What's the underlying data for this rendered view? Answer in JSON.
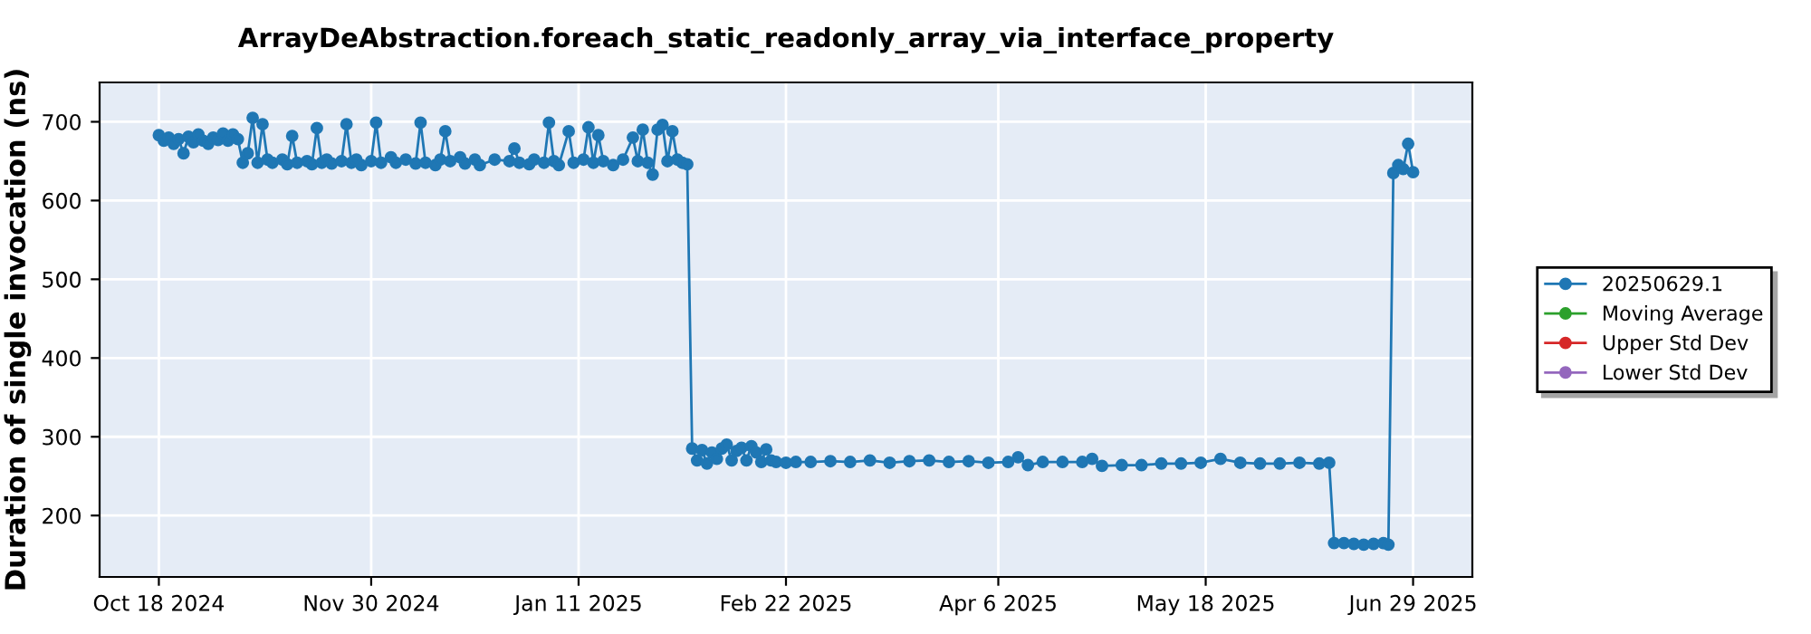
{
  "chart_data": {
    "type": "line",
    "title": "ArrayDeAbstraction.foreach_static_readonly_array_via_interface_property",
    "ylabel": "Duration of single invocation (ns)",
    "xlim": [
      "2024-10-06",
      "2025-07-11"
    ],
    "ylim": [
      122,
      750
    ],
    "xticks": [
      {
        "value": "2024-10-18",
        "label": "Oct 18 2024"
      },
      {
        "value": "2024-11-30",
        "label": "Nov 30 2024"
      },
      {
        "value": "2025-01-11",
        "label": "Jan 11 2025"
      },
      {
        "value": "2025-02-22",
        "label": "Feb 22 2025"
      },
      {
        "value": "2025-04-06",
        "label": "Apr 6 2025"
      },
      {
        "value": "2025-05-18",
        "label": "May 18 2025"
      },
      {
        "value": "2025-06-29",
        "label": "Jun 29 2025"
      }
    ],
    "yticks": [
      200,
      300,
      400,
      500,
      600,
      700
    ],
    "grid": true,
    "legend": "right",
    "marker": "circle",
    "line_style": "solid",
    "series": [
      {
        "name": "20250629.1",
        "color": "#1f77b4",
        "x": [
          "2024-10-18",
          "2024-10-19",
          "2024-10-20",
          "2024-10-21",
          "2024-10-22",
          "2024-10-23",
          "2024-10-24",
          "2024-10-25",
          "2024-10-26",
          "2024-10-27",
          "2024-10-28",
          "2024-10-29",
          "2024-10-30",
          "2024-10-31",
          "2024-11-01",
          "2024-11-02",
          "2024-11-03",
          "2024-11-04",
          "2024-11-05",
          "2024-11-06",
          "2024-11-07",
          "2024-11-08",
          "2024-11-09",
          "2024-11-10",
          "2024-11-12",
          "2024-11-13",
          "2024-11-14",
          "2024-11-15",
          "2024-11-17",
          "2024-11-18",
          "2024-11-19",
          "2024-11-20",
          "2024-11-21",
          "2024-11-22",
          "2024-11-24",
          "2024-11-25",
          "2024-11-26",
          "2024-11-27",
          "2024-11-28",
          "2024-11-30",
          "2024-12-01",
          "2024-12-02",
          "2024-12-04",
          "2024-12-05",
          "2024-12-07",
          "2024-12-09",
          "2024-12-10",
          "2024-12-11",
          "2024-12-13",
          "2024-12-14",
          "2024-12-15",
          "2024-12-16",
          "2024-12-18",
          "2024-12-19",
          "2024-12-21",
          "2024-12-22",
          "2024-12-25",
          "2024-12-28",
          "2024-12-29",
          "2024-12-30",
          "2025-01-01",
          "2025-01-02",
          "2025-01-04",
          "2025-01-05",
          "2025-01-06",
          "2025-01-07",
          "2025-01-09",
          "2025-01-10",
          "2025-01-12",
          "2025-01-13",
          "2025-01-14",
          "2025-01-15",
          "2025-01-16",
          "2025-01-18",
          "2025-01-20",
          "2025-01-22",
          "2025-01-23",
          "2025-01-24",
          "2025-01-25",
          "2025-01-26",
          "2025-01-27",
          "2025-01-28",
          "2025-01-29",
          "2025-01-30",
          "2025-01-31",
          "2025-02-01",
          "2025-02-02",
          "2025-02-03",
          "2025-02-04",
          "2025-02-05",
          "2025-02-06",
          "2025-02-07",
          "2025-02-08",
          "2025-02-09",
          "2025-02-10",
          "2025-02-11",
          "2025-02-12",
          "2025-02-13",
          "2025-02-14",
          "2025-02-15",
          "2025-02-16",
          "2025-02-17",
          "2025-02-18",
          "2025-02-19",
          "2025-02-20",
          "2025-02-22",
          "2025-02-24",
          "2025-02-27",
          "2025-03-03",
          "2025-03-07",
          "2025-03-11",
          "2025-03-15",
          "2025-03-19",
          "2025-03-23",
          "2025-03-27",
          "2025-03-31",
          "2025-04-04",
          "2025-04-08",
          "2025-04-10",
          "2025-04-12",
          "2025-04-15",
          "2025-04-19",
          "2025-04-23",
          "2025-04-25",
          "2025-04-27",
          "2025-05-01",
          "2025-05-05",
          "2025-05-09",
          "2025-05-13",
          "2025-05-17",
          "2025-05-21",
          "2025-05-25",
          "2025-05-29",
          "2025-06-02",
          "2025-06-06",
          "2025-06-10",
          "2025-06-12",
          "2025-06-13",
          "2025-06-15",
          "2025-06-17",
          "2025-06-19",
          "2025-06-21",
          "2025-06-23",
          "2025-06-24",
          "2025-06-25",
          "2025-06-26",
          "2025-06-27",
          "2025-06-28",
          "2025-06-29"
        ],
        "values": [
          683,
          676,
          680,
          672,
          678,
          660,
          681,
          674,
          684,
          676,
          672,
          680,
          677,
          685,
          676,
          684,
          678,
          648,
          660,
          705,
          648,
          697,
          652,
          648,
          652,
          646,
          682,
          648,
          650,
          646,
          692,
          648,
          652,
          647,
          650,
          697,
          648,
          652,
          645,
          650,
          699,
          648,
          655,
          648,
          652,
          647,
          699,
          648,
          645,
          652,
          688,
          650,
          655,
          647,
          652,
          645,
          652,
          650,
          666,
          648,
          646,
          652,
          648,
          699,
          650,
          645,
          688,
          648,
          652,
          693,
          648,
          683,
          650,
          645,
          652,
          680,
          650,
          690,
          648,
          633,
          690,
          696,
          650,
          688,
          652,
          648,
          646,
          285,
          270,
          283,
          266,
          280,
          272,
          285,
          290,
          270,
          282,
          286,
          270,
          288,
          280,
          268,
          284,
          270,
          268,
          267,
          268,
          268,
          269,
          268,
          270,
          267,
          269,
          270,
          268,
          269,
          267,
          268,
          274,
          264,
          268,
          268,
          268,
          272,
          263,
          264,
          264,
          266,
          266,
          267,
          272,
          267,
          266,
          266,
          267,
          266,
          267,
          165,
          165,
          164,
          163,
          164,
          165,
          163,
          635,
          645,
          640,
          672,
          636
        ]
      },
      {
        "name": "Moving Average",
        "color": "#2ca02c"
      },
      {
        "name": "Upper Std Dev",
        "color": "#d62728"
      },
      {
        "name": "Lower Std Dev",
        "color": "#9467bd"
      }
    ]
  }
}
